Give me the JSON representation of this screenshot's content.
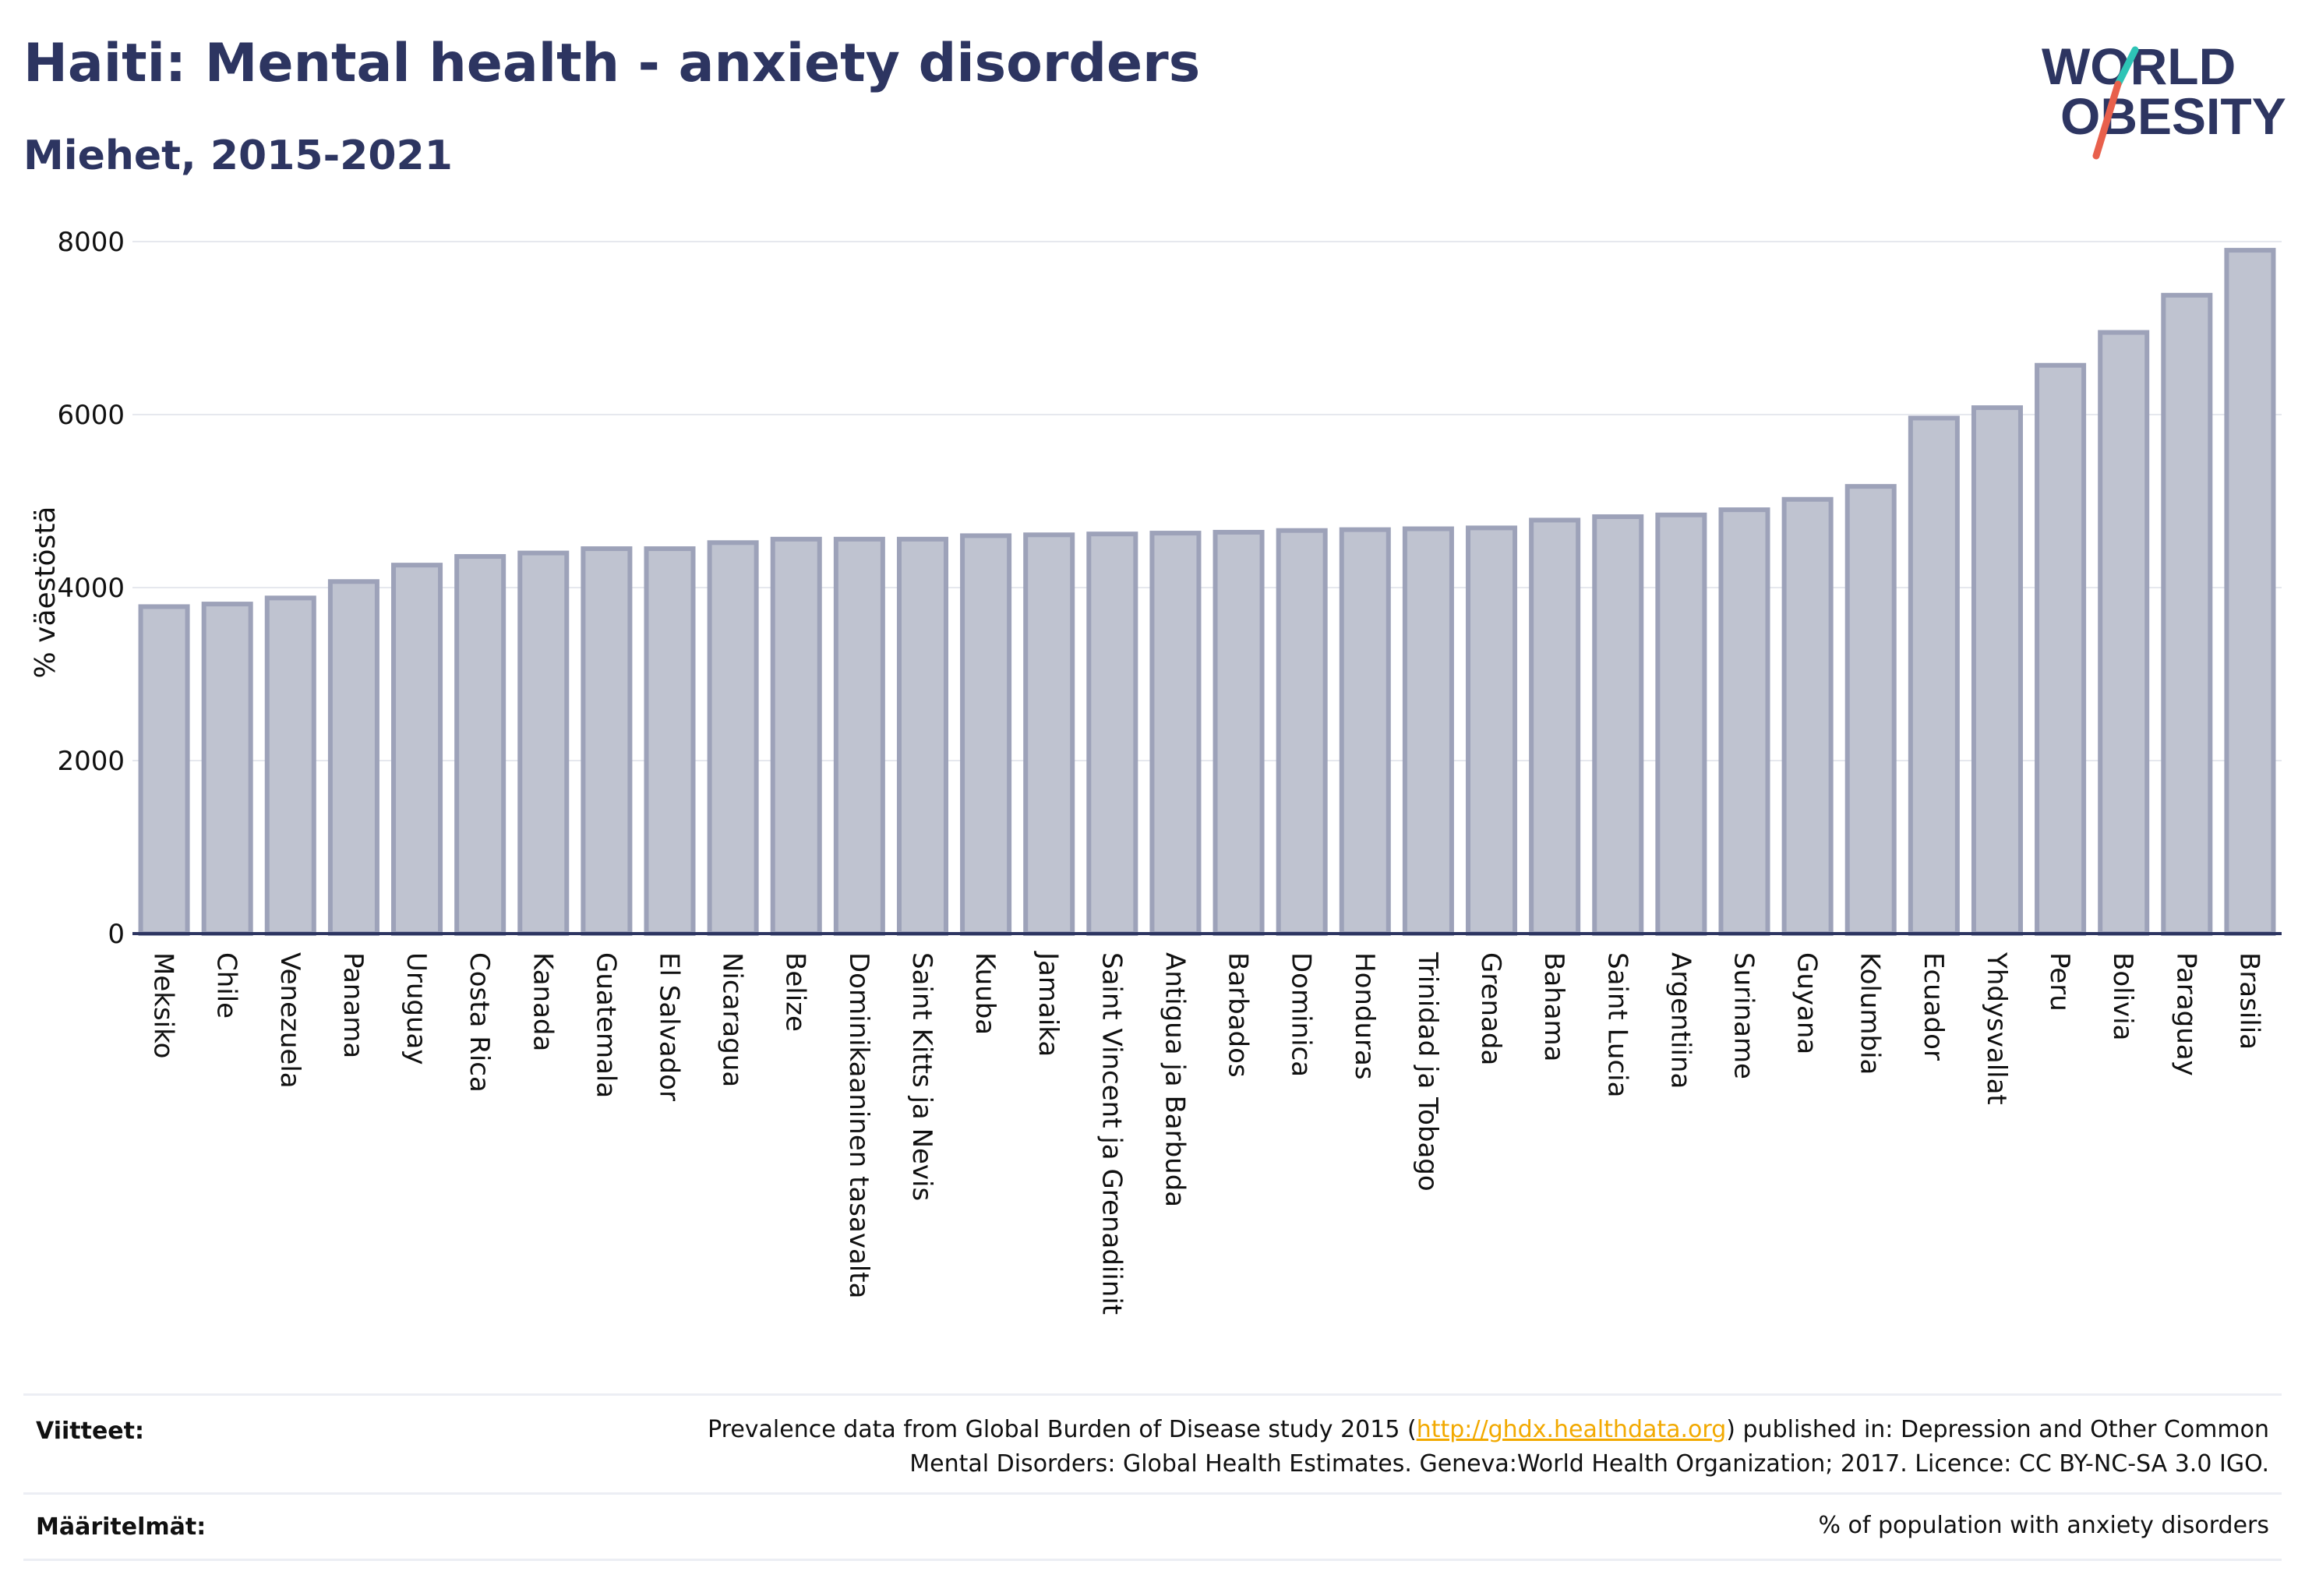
{
  "header": {
    "title": "Haiti: Mental health - anxiety disorders",
    "subtitle": "Miehet, 2015-2021"
  },
  "logo": {
    "line1": "WORLD",
    "line2": "OBESITY",
    "colors": {
      "text": "#2d3561",
      "slash_top": "#2ec4b6",
      "slash_bottom": "#e8604c"
    }
  },
  "colors": {
    "bar_fill": "#bfc3d0",
    "bar_stroke": "#9da2b9",
    "axis": "#2d3561",
    "grid": "#e6e8ee",
    "title": "#2d3561",
    "link": "#f2a900"
  },
  "chart_data": {
    "type": "bar",
    "title": "",
    "xlabel": "",
    "ylabel": "% väestöstä",
    "ylim": [
      0,
      8000
    ],
    "yticks": [
      0,
      2000,
      4000,
      6000,
      8000
    ],
    "grid": true,
    "categories": [
      "Meksiko",
      "Chile",
      "Venezuela",
      "Panama",
      "Uruguay",
      "Costa Rica",
      "Kanada",
      "Guatemala",
      "El Salvador",
      "Nicaragua",
      "Belize",
      "Dominikaaninen tasavalta",
      "Saint Kitts ja Nevis",
      "Kuuba",
      "Jamaika",
      "Saint Vincent ja Grenadiinit",
      "Antigua ja Barbuda",
      "Barbados",
      "Dominica",
      "Honduras",
      "Trinidad ja Tobago",
      "Grenada",
      "Bahama",
      "Saint Lucia",
      "Argentiina",
      "Suriname",
      "Guyana",
      "Kolumbia",
      "Ecuador",
      "Yhdysvallat",
      "Peru",
      "Bolivia",
      "Paraguay",
      "Brasilia"
    ],
    "values": [
      3780,
      3810,
      3880,
      4070,
      4260,
      4360,
      4400,
      4450,
      4450,
      4520,
      4560,
      4560,
      4560,
      4600,
      4610,
      4620,
      4630,
      4640,
      4660,
      4670,
      4680,
      4690,
      4780,
      4820,
      4840,
      4900,
      5020,
      5170,
      5960,
      6080,
      6570,
      6950,
      7380,
      7900
    ]
  },
  "footer": {
    "refs_label": "Viitteet:",
    "refs_text_1": "Prevalence data from Global Burden of Disease study 2015 (",
    "refs_link": "http://ghdx.healthdata.org",
    "refs_text_2": ") published in: Depression and Other Common",
    "refs_text_3": "Mental Disorders: Global Health Estimates. Geneva:World Health Organization; 2017. Licence: CC BY-NC-SA 3.0 IGO.",
    "defs_label": "Määritelmät:",
    "defs_text": "% of population with anxiety disorders"
  }
}
